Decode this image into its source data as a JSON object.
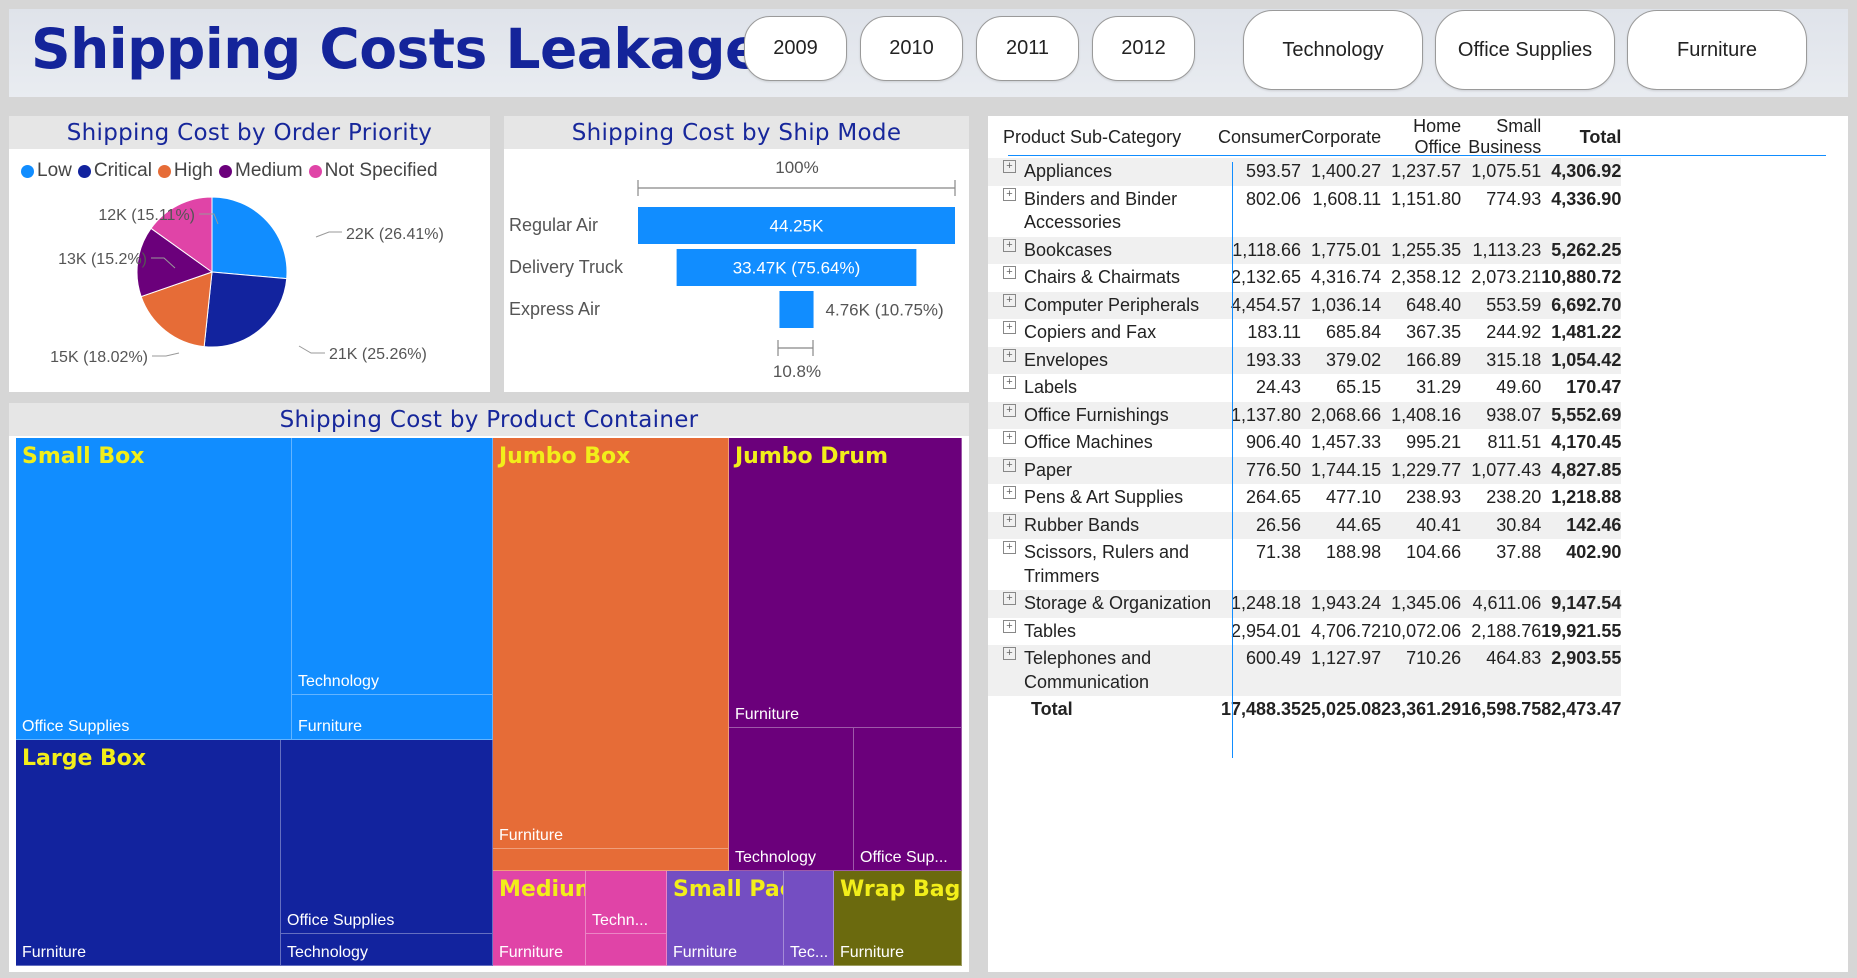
{
  "header": {
    "title": "Shipping Costs Leakages",
    "years": [
      "2009",
      "2010",
      "2011",
      "2012"
    ],
    "categories": [
      "Technology",
      "Office Supplies",
      "Furniture"
    ]
  },
  "colors": {
    "title": "#14249a",
    "low": "#118dff",
    "critical": "#12239e",
    "high": "#e66c37",
    "medium": "#6b007b",
    "not_specified": "#e044a7",
    "small_pack": "#744ec2",
    "wrap_bag": "#6b6a0e",
    "label_yellow": "#f2ee1a"
  },
  "pie": {
    "title": "Shipping Cost by Order Priority",
    "legend": [
      "Low",
      "Critical",
      "High",
      "Medium",
      "Not Specified"
    ],
    "labels": [
      "22K (26.41%)",
      "21K (25.26%)",
      "15K (18.02%)",
      "13K (15.2%)",
      "12K (15.11%)"
    ]
  },
  "funnel": {
    "title": "Shipping Cost by Ship Mode",
    "top_label": "100%",
    "bottom_label": "10.8%",
    "rows": [
      "Regular Air",
      "Delivery Truck",
      "Express Air"
    ],
    "value_labels": [
      "44.25K",
      "33.47K (75.64%)",
      "4.76K (10.75%)"
    ]
  },
  "treemap": {
    "title": "Shipping Cost by Product Container",
    "containers": [
      "Small Box",
      "Large Box",
      "Jumbo Box",
      "Jumbo Drum",
      "Medium Box",
      "Small Pack",
      "Wrap Bag"
    ],
    "cells": {
      "sb_os": "Office Supplies",
      "sb_tech": "Technology",
      "sb_furn": "Furniture",
      "lb_furn": "Furniture",
      "lb_os": "Office Supplies",
      "lb_tech": "Technology",
      "jb_furn": "Furniture",
      "jd_furn": "Furniture",
      "jd_tech": "Technology",
      "jd_os": "Office Sup...",
      "mb_furn": "Furniture",
      "mb_tech": "Techn...",
      "sp_furn": "Furniture",
      "sp_tech": "Tec...",
      "wb_furn": "Furniture"
    }
  },
  "chart_data": [
    {
      "type": "pie",
      "title": "Shipping Cost by Order Priority",
      "categories": [
        "Low",
        "Critical",
        "High",
        "Medium",
        "Not Specified"
      ],
      "values": [
        22,
        21,
        15,
        13,
        12
      ],
      "percent": [
        26.41,
        25.26,
        18.02,
        15.2,
        15.11
      ],
      "legend": "top-left"
    },
    {
      "type": "bar",
      "title": "Shipping Cost by Ship Mode",
      "categories": [
        "Regular Air",
        "Delivery Truck",
        "Express Air"
      ],
      "values": [
        44.25,
        33.47,
        4.76
      ],
      "percent_of_first": [
        100,
        75.64,
        10.75
      ]
    },
    {
      "type": "table",
      "title": "Shipping Cost by Product Container",
      "categories": [
        "Small Box",
        "Large Box",
        "Jumbo Box",
        "Jumbo Drum",
        "Medium Box",
        "Small Pack",
        "Wrap Bag"
      ]
    },
    {
      "type": "table",
      "columns": [
        "Product Sub-Category",
        "Consumer",
        "Corporate",
        "Home Office",
        "Small Business",
        "Total"
      ],
      "rows": [
        [
          "Appliances",
          "593.57",
          "1,400.27",
          "1,237.57",
          "1,075.51",
          "4,306.92"
        ],
        [
          "Binders and Binder Accessories",
          "802.06",
          "1,608.11",
          "1,151.80",
          "774.93",
          "4,336.90"
        ],
        [
          "Bookcases",
          "1,118.66",
          "1,775.01",
          "1,255.35",
          "1,113.23",
          "5,262.25"
        ],
        [
          "Chairs & Chairmats",
          "2,132.65",
          "4,316.74",
          "2,358.12",
          "2,073.21",
          "10,880.72"
        ],
        [
          "Computer Peripherals",
          "4,454.57",
          "1,036.14",
          "648.40",
          "553.59",
          "6,692.70"
        ],
        [
          "Copiers and Fax",
          "183.11",
          "685.84",
          "367.35",
          "244.92",
          "1,481.22"
        ],
        [
          "Envelopes",
          "193.33",
          "379.02",
          "166.89",
          "315.18",
          "1,054.42"
        ],
        [
          "Labels",
          "24.43",
          "65.15",
          "31.29",
          "49.60",
          "170.47"
        ],
        [
          "Office Furnishings",
          "1,137.80",
          "2,068.66",
          "1,408.16",
          "938.07",
          "5,552.69"
        ],
        [
          "Office Machines",
          "906.40",
          "1,457.33",
          "995.21",
          "811.51",
          "4,170.45"
        ],
        [
          "Paper",
          "776.50",
          "1,744.15",
          "1,229.77",
          "1,077.43",
          "4,827.85"
        ],
        [
          "Pens & Art Supplies",
          "264.65",
          "477.10",
          "238.93",
          "238.20",
          "1,218.88"
        ],
        [
          "Rubber Bands",
          "26.56",
          "44.65",
          "40.41",
          "30.84",
          "142.46"
        ],
        [
          "Scissors, Rulers and Trimmers",
          "71.38",
          "188.98",
          "104.66",
          "37.88",
          "402.90"
        ],
        [
          "Storage & Organization",
          "1,248.18",
          "1,943.24",
          "1,345.06",
          "4,611.06",
          "9,147.54"
        ],
        [
          "Tables",
          "2,954.01",
          "4,706.72",
          "10,072.06",
          "2,188.76",
          "19,921.55"
        ],
        [
          "Telephones and Communication",
          "600.49",
          "1,127.97",
          "710.26",
          "464.83",
          "2,903.55"
        ]
      ],
      "total": [
        "Total",
        "17,488.35",
        "25,025.08",
        "23,361.29",
        "16,598.75",
        "82,473.47"
      ]
    }
  ]
}
